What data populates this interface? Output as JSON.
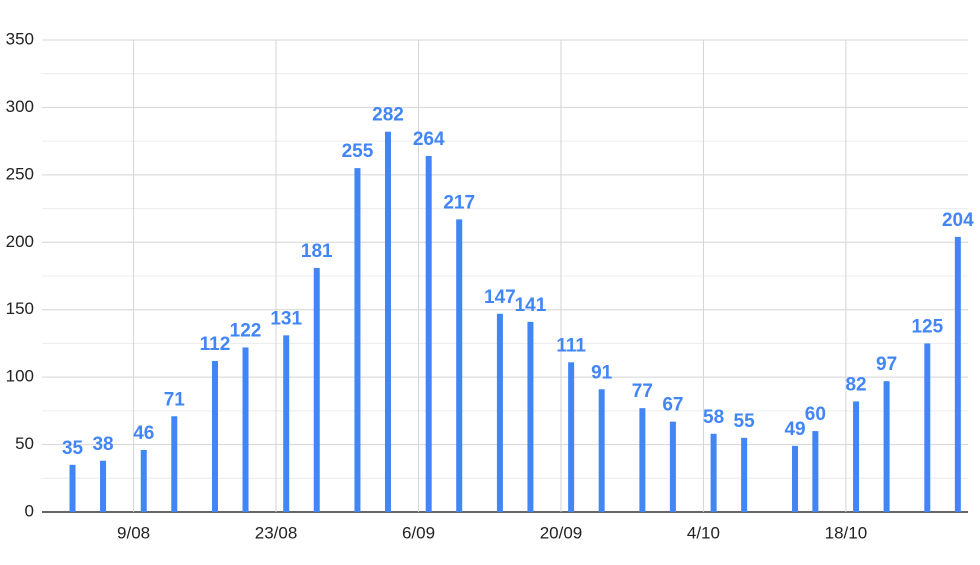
{
  "chart_data": {
    "type": "bar",
    "x": [
      "3/08",
      "6/08",
      "10/08",
      "13/08",
      "17/08",
      "20/08",
      "24/08",
      "27/08",
      "31/08",
      "3/09",
      "7/09",
      "10/09",
      "14/09",
      "17/09",
      "21/09",
      "24/09",
      "28/09",
      "1/10",
      "5/10",
      "8/10",
      "13/10",
      "15/10",
      "19/10",
      "22/10",
      "26/10",
      "29/10"
    ],
    "values": [
      35,
      38,
      46,
      71,
      112,
      122,
      131,
      181,
      255,
      282,
      264,
      217,
      147,
      141,
      111,
      91,
      77,
      67,
      58,
      55,
      49,
      60,
      82,
      97,
      125,
      204
    ],
    "color": "#4285f4",
    "xlim": [
      "31/07",
      "30/10"
    ],
    "xticks": [
      "9/08",
      "23/08",
      "6/09",
      "20/09",
      "4/10",
      "18/10"
    ],
    "ylim": [
      0,
      350
    ],
    "yticks": [
      0,
      50,
      100,
      150,
      200,
      250,
      300,
      350
    ],
    "grid": true
  }
}
